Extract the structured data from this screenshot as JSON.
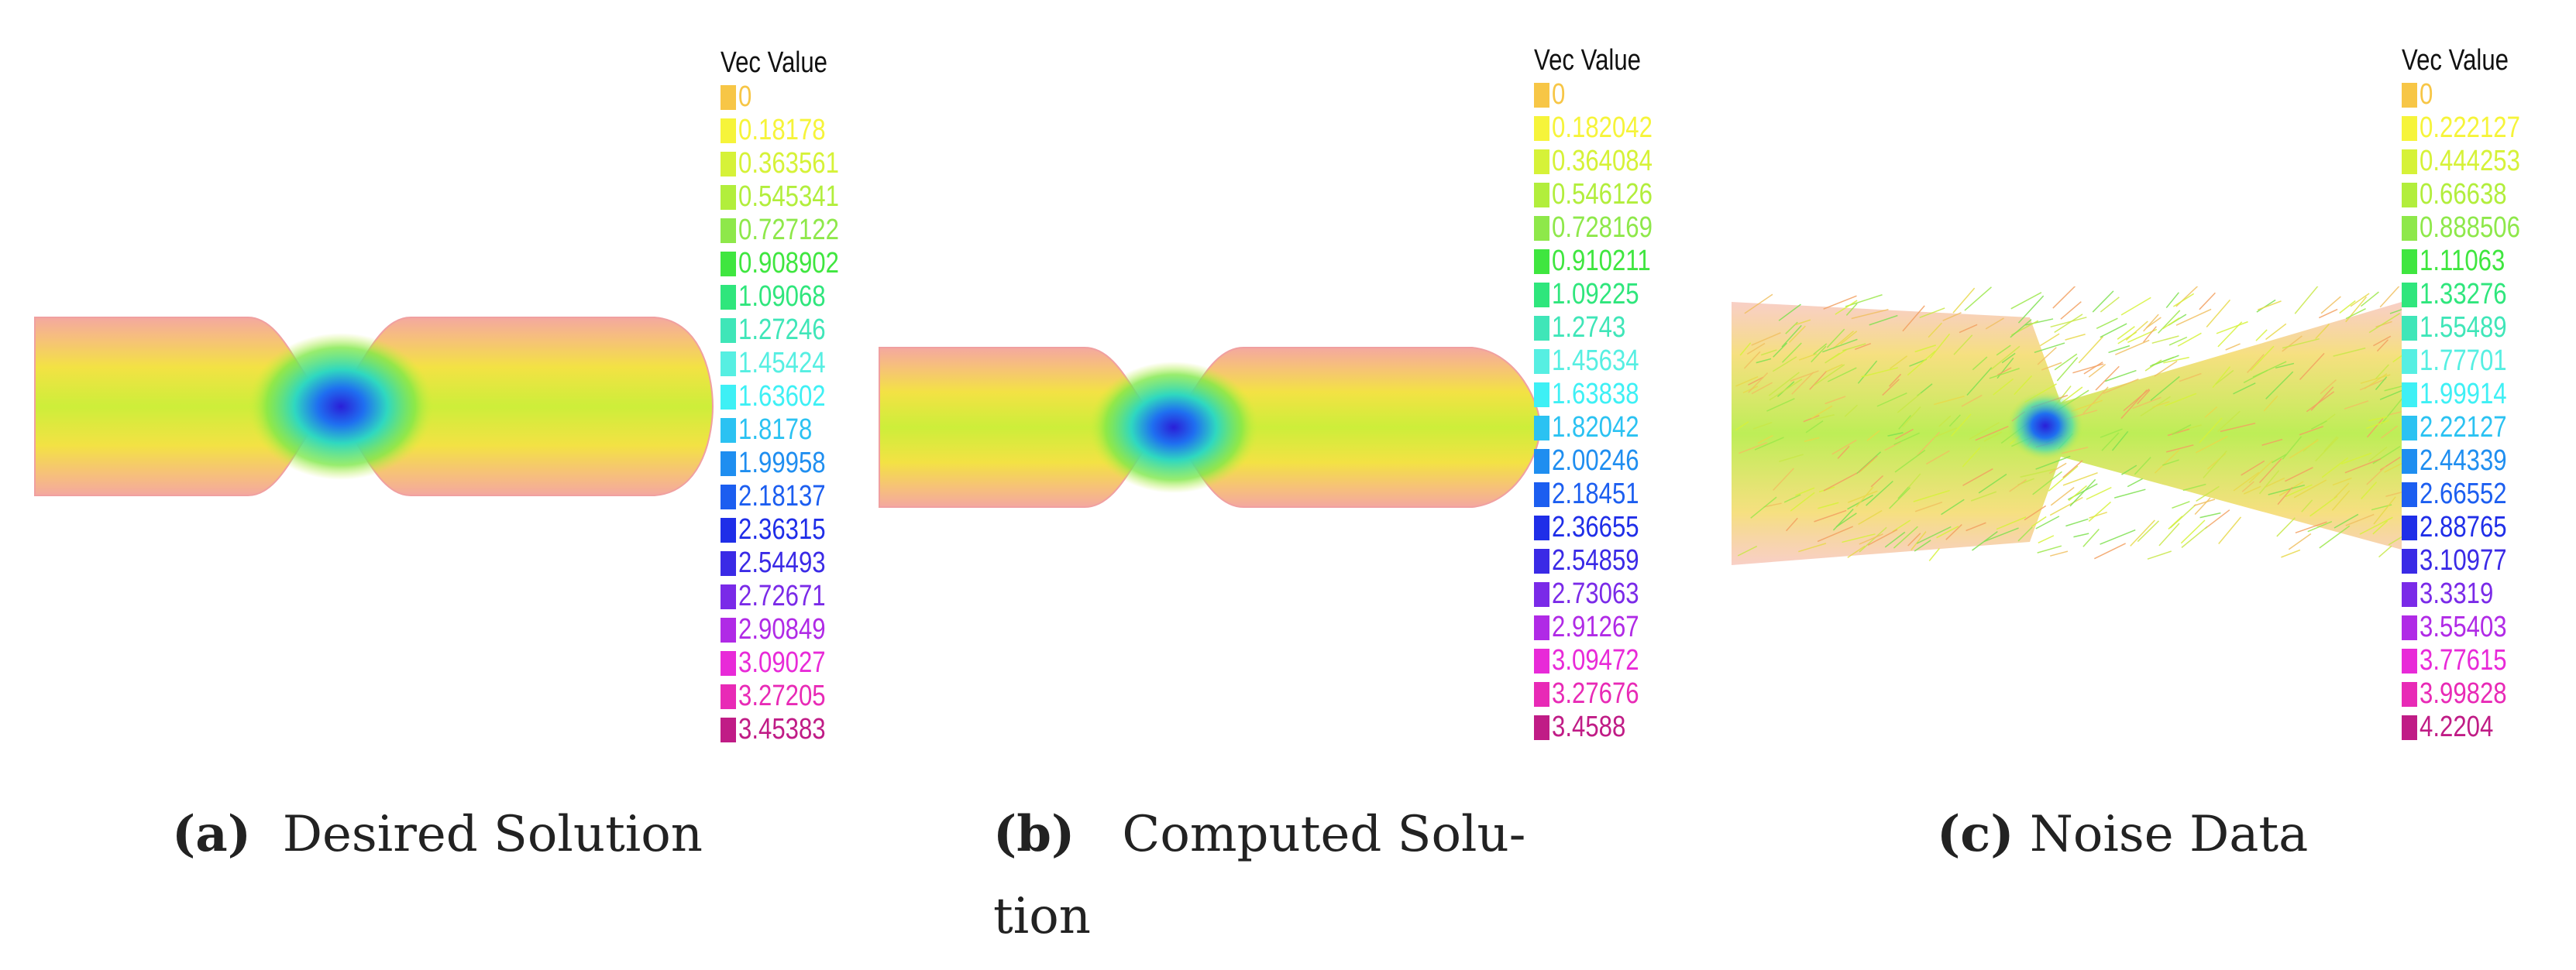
{
  "legend_colors": [
    "#f7c646",
    "#f6f43a",
    "#d6f238",
    "#b2ee3c",
    "#8ee84a",
    "#3fe63f",
    "#2fe67c",
    "#3fe6b8",
    "#56efe2",
    "#3ef0f5",
    "#2bc2f2",
    "#1f8ef0",
    "#1c5ef0",
    "#1f2ee8",
    "#3a2ae6",
    "#7a2ae8",
    "#b02ae6",
    "#e82ad8",
    "#e82ab6",
    "#c01c86"
  ],
  "panels": [
    {
      "letter": "(a)",
      "caption": "Desired Solution",
      "legend_title": "Vec Value",
      "legend_values": [
        "0",
        "0.18178",
        "0.363561",
        "0.545341",
        "0.727122",
        "0.908902",
        "1.09068",
        "1.27246",
        "1.45424",
        "1.63602",
        "1.8178",
        "1.99958",
        "2.18137",
        "2.36315",
        "2.54493",
        "2.72671",
        "2.90849",
        "3.09027",
        "3.27205",
        "3.45383"
      ],
      "field_type": "smooth"
    },
    {
      "letter": "(b)",
      "caption_line1": "Computed   Solu-",
      "caption_line2": "tion",
      "legend_title": "Vec Value",
      "legend_values": [
        "0",
        "0.182042",
        "0.364084",
        "0.546126",
        "0.728169",
        "0.910211",
        "1.09225",
        "1.2743",
        "1.45634",
        "1.63838",
        "1.82042",
        "2.00246",
        "2.18451",
        "2.36655",
        "2.54859",
        "2.73063",
        "2.91267",
        "3.09472",
        "3.27676",
        "3.4588"
      ],
      "field_type": "smooth"
    },
    {
      "letter": "(c)",
      "caption": "Noise Data",
      "legend_title": "Vec Value",
      "legend_values": [
        "0",
        "0.222127",
        "0.444253",
        "0.66638",
        "0.888506",
        "1.11063",
        "1.33276",
        "1.55489",
        "1.77701",
        "1.99914",
        "2.22127",
        "2.44339",
        "2.66552",
        "2.88765",
        "3.10977",
        "3.3319",
        "3.55403",
        "3.77615",
        "3.99828",
        "4.2204"
      ],
      "field_type": "noisy"
    }
  ]
}
